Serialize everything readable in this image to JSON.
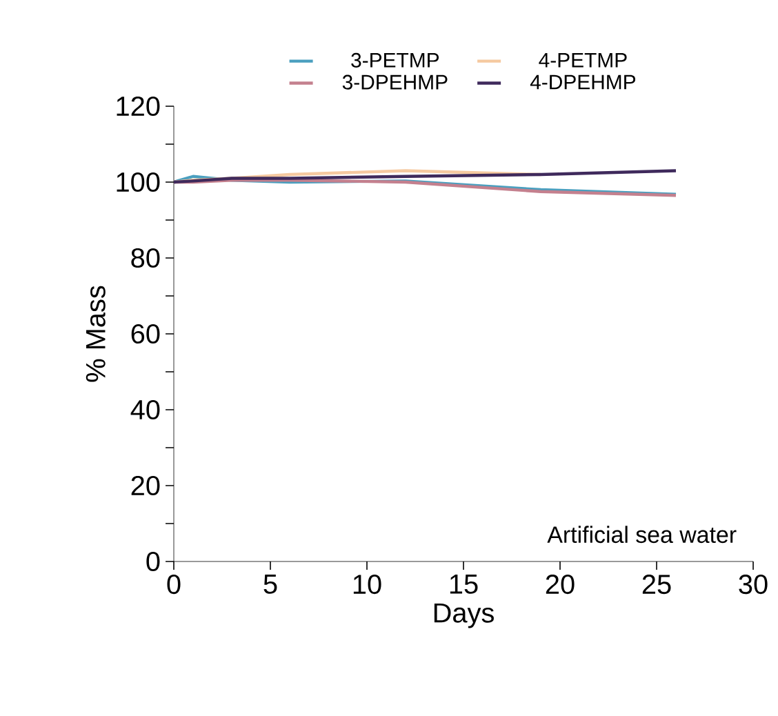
{
  "chart_data": {
    "type": "line",
    "xlabel": "Days",
    "ylabel": "% Mass",
    "x": [
      0,
      1,
      3,
      6,
      12,
      19,
      26
    ],
    "series": [
      {
        "name": "3-PETMP",
        "color": "#4a9fbf",
        "values": [
          100,
          101.5,
          100.5,
          100,
          100.3,
          98,
          96.8
        ]
      },
      {
        "name": "4-PETMP",
        "color": "#f5c9a0",
        "values": [
          100,
          100.5,
          101,
          102,
          103,
          102,
          null
        ]
      },
      {
        "name": "3-DPEHMP",
        "color": "#c4808e",
        "values": [
          100,
          100,
          100.5,
          100.5,
          100,
          97.5,
          96.5
        ]
      },
      {
        "name": "4-DPEHMP",
        "color": "#3f2a5c",
        "values": [
          100,
          100.3,
          101,
          101,
          101.5,
          102,
          103
        ]
      }
    ],
    "xlim": [
      0,
      30
    ],
    "xticks": [
      0,
      5,
      10,
      15,
      20,
      25,
      30
    ],
    "ylim": [
      0,
      120
    ],
    "yticks": [
      0,
      {
        "value": 10,
        "label": null
      },
      20,
      {
        "value": 30,
        "label": null
      },
      40,
      {
        "value": 50,
        "label": null
      },
      60,
      {
        "value": 70,
        "label": null
      },
      80,
      {
        "value": 90,
        "label": null
      },
      100,
      {
        "value": 110,
        "label": null
      },
      120
    ],
    "annotations": [
      "Artificial sea water"
    ],
    "legend": "top",
    "grid": false,
    "marker": "none",
    "line_style": "solid"
  }
}
